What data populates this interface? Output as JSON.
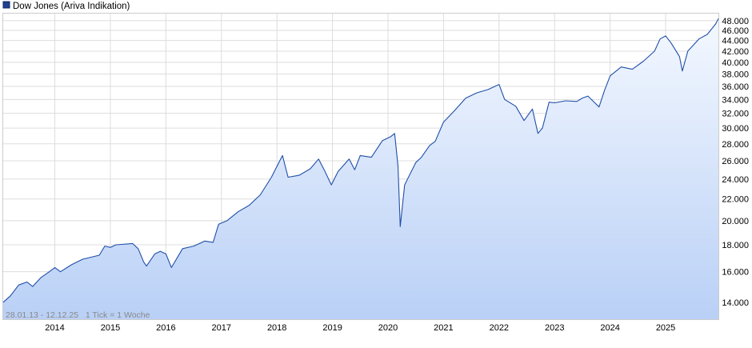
{
  "chart_data": {
    "type": "area",
    "legend": {
      "label": "Dow Jones (Ariva Indikation)",
      "placement": "top-left"
    },
    "footnote": "28.01.13 - 12.12.25   1 Tick = 1 Woche",
    "y_scale": "log",
    "ylim": [
      13000,
      49500
    ],
    "y_ticks": [
      14000,
      16000,
      18000,
      20000,
      22000,
      24000,
      26000,
      28000,
      30000,
      32000,
      34000,
      36000,
      38000,
      40000,
      42000,
      44000,
      46000,
      48000
    ],
    "y_tick_labels": [
      "14.000",
      "16.000",
      "18.000",
      "20.000",
      "22.000",
      "24.000",
      "26.000",
      "28.000",
      "30.000",
      "32.000",
      "34.000",
      "36.000",
      "38.000",
      "40.000",
      "42.000",
      "44.000",
      "46.000",
      "48.000"
    ],
    "x_tick_labels": [
      "2014",
      "2015",
      "2016",
      "2017",
      "2018",
      "2019",
      "2020",
      "2021",
      "2022",
      "2023",
      "2024",
      "2025"
    ],
    "x_ticks": [
      2014.0,
      2015.0,
      2016.0,
      2017.0,
      2018.0,
      2019.0,
      2020.0,
      2021.0,
      2022.0,
      2023.0,
      2024.0,
      2025.0
    ],
    "xlim": [
      2013.07,
      2025.95
    ],
    "grid": true,
    "colors": {
      "line": "#1f4fa8",
      "fill_top": "#f4f8ff",
      "fill_bottom": "#b9d0f6",
      "grid": "#dddddd",
      "legend_square": "#1f3f8f"
    },
    "series": [
      {
        "name": "Dow Jones (Ariva Indikation)",
        "x": [
          2013.07,
          2013.2,
          2013.35,
          2013.5,
          2013.6,
          2013.75,
          2013.9,
          2014.0,
          2014.1,
          2014.3,
          2014.5,
          2014.6,
          2014.8,
          2014.9,
          2015.0,
          2015.1,
          2015.4,
          2015.5,
          2015.6,
          2015.65,
          2015.8,
          2015.9,
          2016.0,
          2016.1,
          2016.3,
          2016.5,
          2016.7,
          2016.85,
          2016.95,
          2017.1,
          2017.3,
          2017.5,
          2017.7,
          2017.9,
          2018.05,
          2018.1,
          2018.2,
          2018.4,
          2018.6,
          2018.75,
          2018.85,
          2018.98,
          2019.1,
          2019.3,
          2019.4,
          2019.5,
          2019.7,
          2019.9,
          2020.05,
          2020.12,
          2020.18,
          2020.22,
          2020.3,
          2020.5,
          2020.6,
          2020.75,
          2020.85,
          2021.0,
          2021.2,
          2021.4,
          2021.6,
          2021.8,
          2021.9,
          2022.0,
          2022.1,
          2022.3,
          2022.45,
          2022.6,
          2022.7,
          2022.78,
          2022.9,
          2023.0,
          2023.2,
          2023.4,
          2023.5,
          2023.6,
          2023.8,
          2023.9,
          2024.0,
          2024.2,
          2024.4,
          2024.6,
          2024.8,
          2024.9,
          2025.0,
          2025.1,
          2025.25,
          2025.3,
          2025.4,
          2025.6,
          2025.75,
          2025.9,
          2025.95
        ],
        "values": [
          14000,
          14400,
          15100,
          15300,
          15000,
          15600,
          16000,
          16300,
          16000,
          16500,
          16900,
          17000,
          17200,
          17900,
          17800,
          18000,
          18100,
          17700,
          16700,
          16400,
          17300,
          17500,
          17300,
          16300,
          17700,
          17900,
          18300,
          18200,
          19700,
          20000,
          20800,
          21400,
          22400,
          24200,
          26000,
          26600,
          24200,
          24400,
          25100,
          26200,
          25000,
          23400,
          24800,
          26200,
          25000,
          26600,
          26400,
          28400,
          28900,
          29300,
          25400,
          19500,
          23400,
          25800,
          26400,
          27800,
          28300,
          30800,
          32400,
          34200,
          35000,
          35500,
          35900,
          36300,
          34000,
          33000,
          31000,
          32600,
          29300,
          30000,
          33600,
          33500,
          33800,
          33700,
          34200,
          34500,
          32900,
          35400,
          37700,
          39200,
          38800,
          40200,
          42000,
          44300,
          44900,
          43500,
          41000,
          38500,
          42000,
          44300,
          45200,
          47300,
          48400
        ]
      }
    ]
  }
}
